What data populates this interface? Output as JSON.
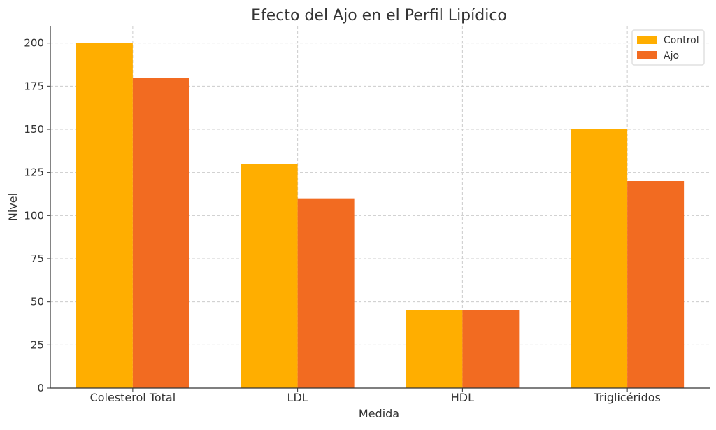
{
  "chart_data": {
    "type": "bar",
    "title": "Efecto del Ajo en el Perfil Lipídico",
    "xlabel": "Medida",
    "ylabel": "Nivel",
    "categories": [
      "Colesterol Total",
      "LDL",
      "HDL",
      "Triglicéridos"
    ],
    "series": [
      {
        "name": "Control",
        "color": "#FFAE00",
        "values": [
          200,
          130,
          45,
          150
        ]
      },
      {
        "name": "Ajo",
        "color": "#F26B21",
        "values": [
          180,
          110,
          45,
          120
        ]
      }
    ],
    "ylim": [
      0,
      210
    ],
    "yticks": [
      0,
      25,
      50,
      75,
      100,
      125,
      150,
      175,
      200
    ],
    "grid": true,
    "legend_position": "top-right"
  }
}
